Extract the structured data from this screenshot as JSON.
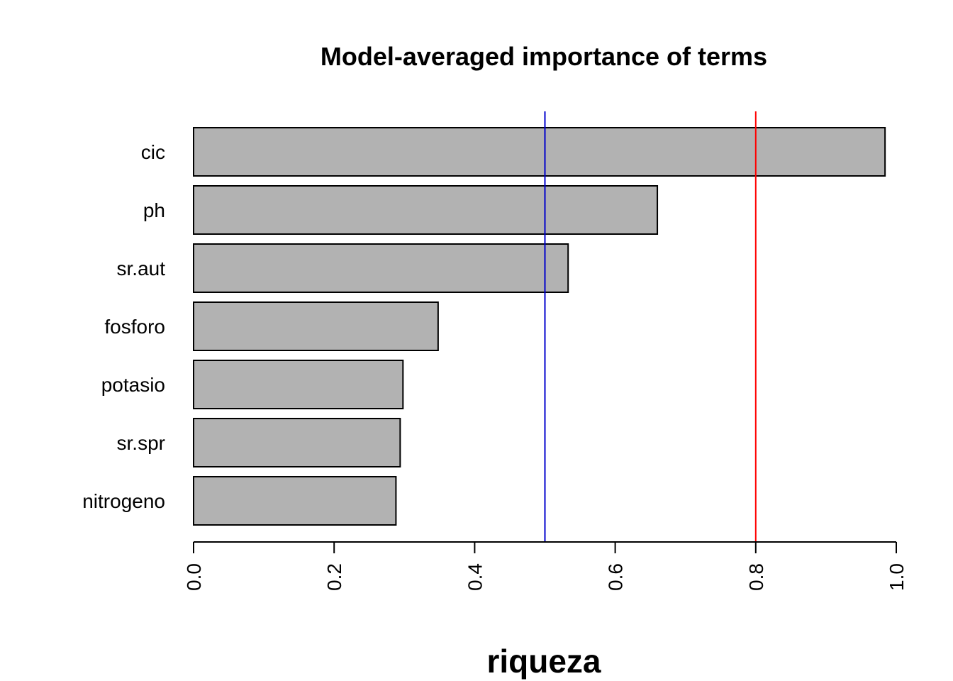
{
  "chart_data": {
    "type": "bar",
    "orientation": "horizontal",
    "title": "Model-averaged importance of terms",
    "xlabel": "riqueza",
    "ylabel": "",
    "categories": [
      "cic",
      "ph",
      "sr.aut",
      "fosforo",
      "potasio",
      "sr.spr",
      "nitrogeno"
    ],
    "values": [
      0.984,
      0.66,
      0.533,
      0.348,
      0.298,
      0.294,
      0.288
    ],
    "xlim": [
      0,
      1
    ],
    "x_ticks": [
      "0.0",
      "0.2",
      "0.4",
      "0.6",
      "0.8",
      "1.0"
    ],
    "reference_lines": [
      {
        "value": 0.5,
        "color": "#0000cc"
      },
      {
        "value": 0.8,
        "color": "#ff0000"
      }
    ],
    "bar_fill": "#b2b2b2",
    "bar_stroke": "#000000",
    "grid": false,
    "legend": "none"
  }
}
